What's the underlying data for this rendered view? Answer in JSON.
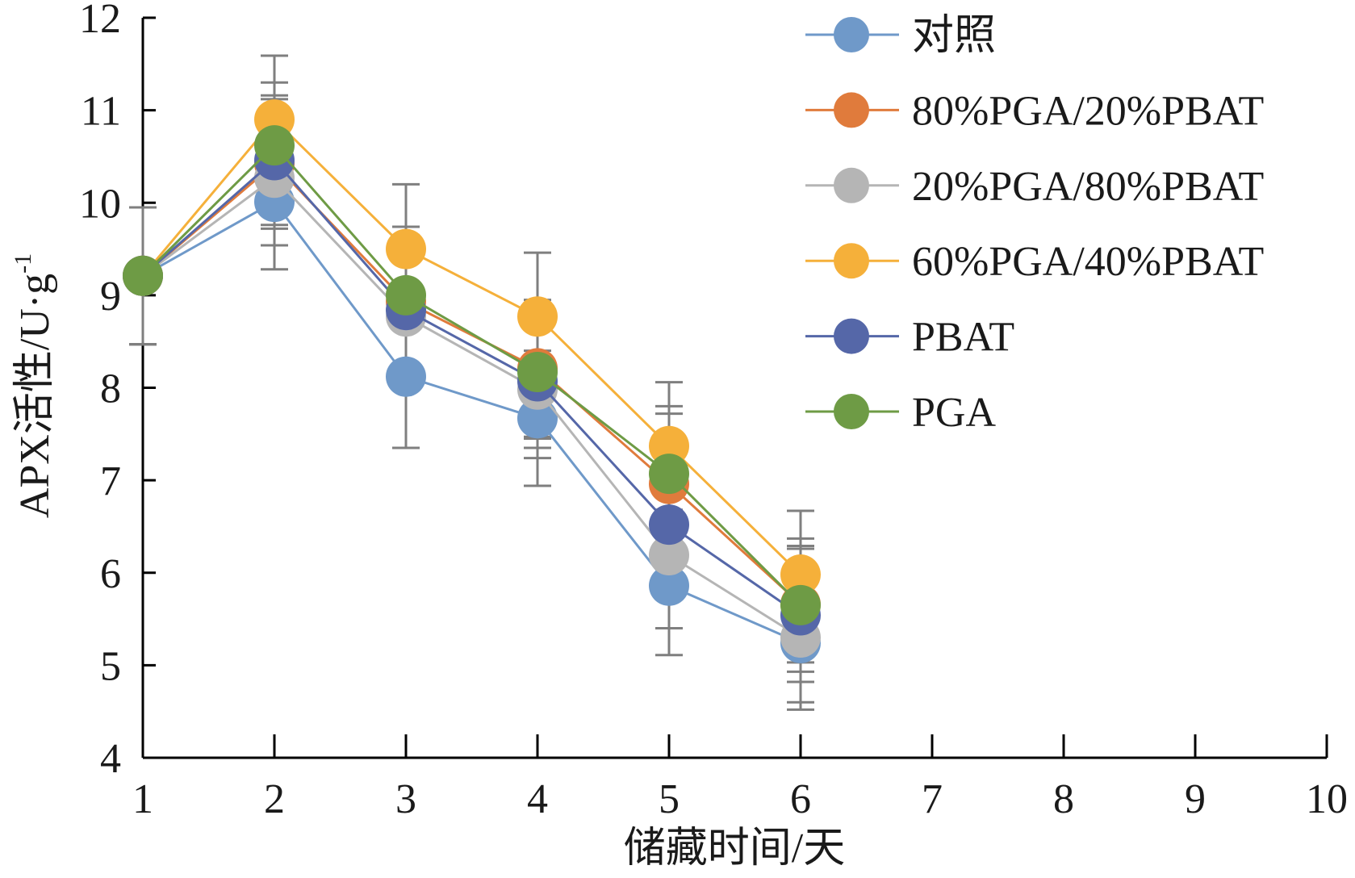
{
  "chart_data": {
    "type": "line",
    "xlabel": "储藏时间/天",
    "ylabel": "APX活性/U·g",
    "ylabel_sup": "-1",
    "xlim": [
      1,
      10
    ],
    "ylim": [
      4,
      12
    ],
    "xticks": [
      1,
      2,
      3,
      4,
      5,
      6,
      7,
      8,
      9,
      10
    ],
    "yticks": [
      4,
      5,
      6,
      7,
      8,
      9,
      10,
      11,
      12
    ],
    "grid": false,
    "legend_position": "top-right",
    "error_bar_color": "#7f7f7f",
    "x": [
      1,
      2,
      3,
      4,
      5,
      6
    ],
    "series": [
      {
        "name": "对照",
        "color": "#6f99c9",
        "values": [
          9.21,
          10.01,
          8.12,
          7.67,
          5.86,
          5.24
        ],
        "errors": [
          0.74,
          0.73,
          0.77,
          0.73,
          0.75,
          0.72
        ]
      },
      {
        "name": "80%PGA/20%PBAT",
        "color": "#e07b3c",
        "values": [
          9.21,
          10.42,
          8.93,
          8.21,
          6.96,
          5.66
        ],
        "errors": [
          0.74,
          0.7,
          0.72,
          0.74,
          0.76,
          0.63
        ]
      },
      {
        "name": "20%PGA/80%PBAT",
        "color": "#b5b5b5",
        "values": [
          9.21,
          10.27,
          8.77,
          7.98,
          6.19,
          5.3
        ],
        "errors": [
          0.74,
          0.73,
          0.72,
          0.74,
          0.79,
          0.7
        ]
      },
      {
        "name": "60%PGA/40%PBAT",
        "color": "#f5b03a",
        "values": [
          9.21,
          10.9,
          9.5,
          8.77,
          7.37,
          5.98
        ],
        "errors": [
          0.74,
          0.69,
          0.7,
          0.69,
          0.69,
          0.69
        ]
      },
      {
        "name": "PBAT",
        "color": "#5567a8",
        "values": [
          9.21,
          10.46,
          8.84,
          8.07,
          6.52,
          5.54
        ],
        "errors": [
          0.74,
          0.7,
          0.72,
          0.72,
          0.74,
          0.72
        ]
      },
      {
        "name": "PGA",
        "color": "#6e9b45",
        "values": [
          9.21,
          10.62,
          9.0,
          8.17,
          7.07,
          5.65
        ],
        "errors": [
          0.74,
          0.68,
          0.74,
          0.72,
          0.73,
          0.72
        ]
      }
    ]
  }
}
